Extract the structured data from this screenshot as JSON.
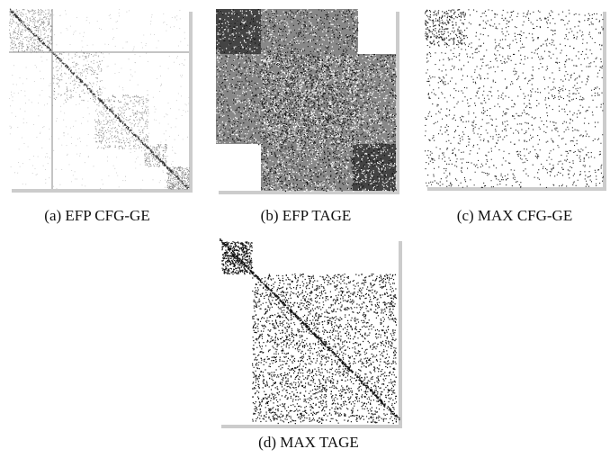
{
  "figure": {
    "panels": [
      {
        "caption": "(a) EFP CFG-GE"
      },
      {
        "caption": "(b) EFP TAGE"
      },
      {
        "caption": "(c) MAX CFG-GE"
      },
      {
        "caption": "(d) MAX TAGE"
      }
    ]
  }
}
